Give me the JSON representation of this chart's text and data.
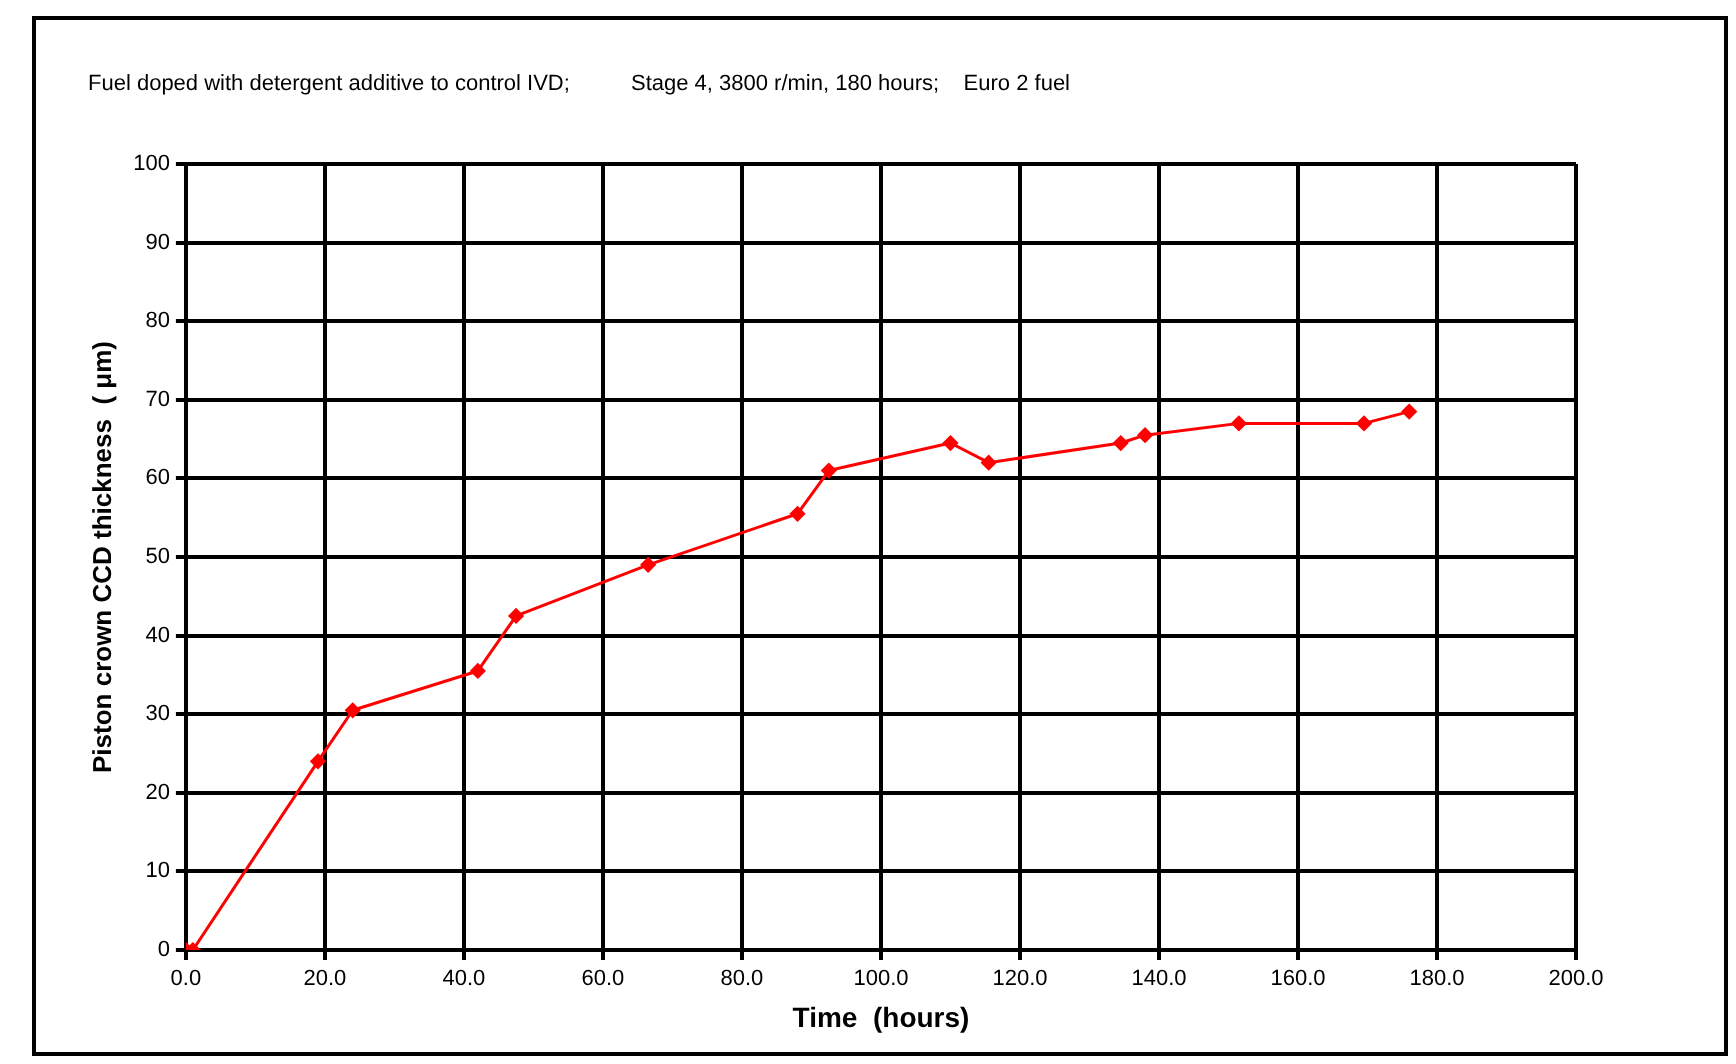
{
  "chart_data": {
    "type": "line",
    "title": "Fuel doped with detergent additive to control IVD;          Stage 4, 3800 r/min, 180 hours;    Euro 2 fuel",
    "xlabel": "Time  (hours)",
    "ylabel": "Piston crown CCD thickness  ( μm)",
    "series": [
      {
        "color": "#ff0000",
        "x": [
          0,
          1,
          19,
          24,
          42,
          47.5,
          66.5,
          88,
          92.5,
          110,
          115.5,
          134.5,
          138,
          151.5,
          169.5,
          176
        ],
        "values": [
          0,
          0,
          24,
          30.5,
          35.5,
          42.5,
          49,
          55.5,
          61,
          64.5,
          62,
          64.5,
          65.5,
          67,
          67,
          68.5
        ]
      }
    ],
    "xlim": [
      0,
      200
    ],
    "xticks": [
      {
        "value": 0,
        "label": "0.0"
      },
      {
        "value": 20,
        "label": "20.0"
      },
      {
        "value": 40,
        "label": "40.0"
      },
      {
        "value": 60,
        "label": "60.0"
      },
      {
        "value": 80,
        "label": "80.0"
      },
      {
        "value": 100,
        "label": "100.0"
      },
      {
        "value": 120,
        "label": "120.0"
      },
      {
        "value": 140,
        "label": "140.0"
      },
      {
        "value": 160,
        "label": "160.0"
      },
      {
        "value": 180,
        "label": "180.0"
      },
      {
        "value": 200,
        "label": "200.0"
      }
    ],
    "ylim": [
      0,
      100
    ],
    "yticks": [
      0,
      10,
      20,
      30,
      40,
      50,
      60,
      70,
      80,
      90,
      100
    ],
    "grid": true,
    "legend": false,
    "marker": "diamond",
    "line_style": "solid"
  }
}
